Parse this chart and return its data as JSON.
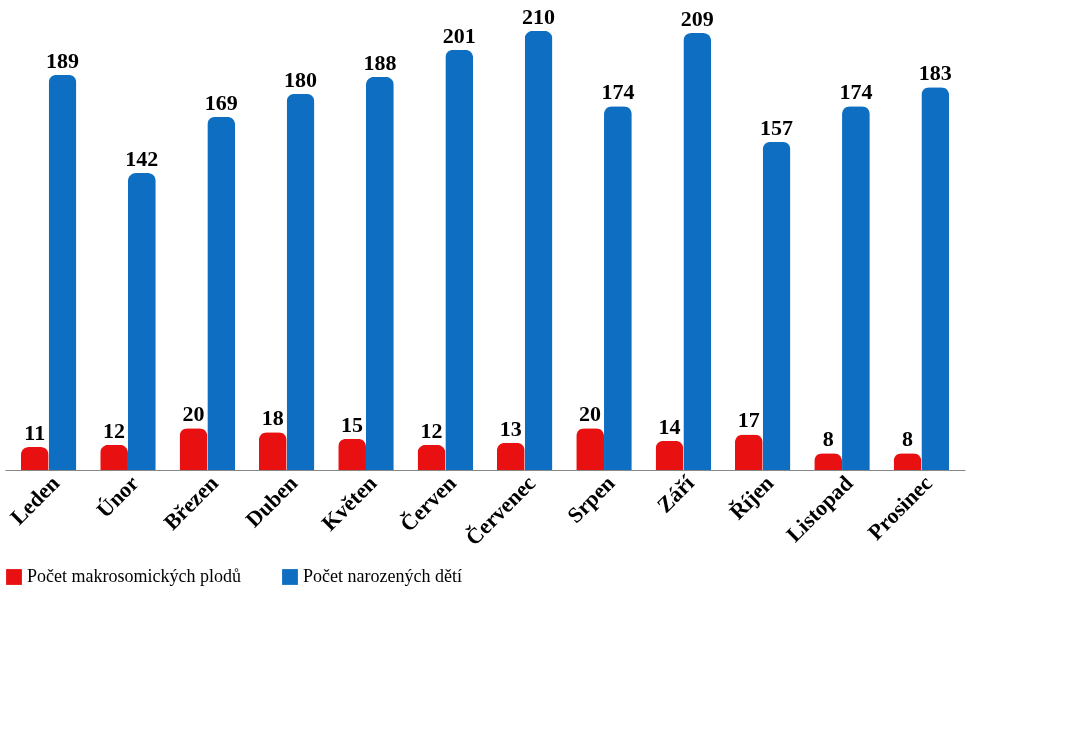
{
  "chart_data": {
    "type": "bar",
    "categories": [
      "Leden",
      "Únor",
      "Březen",
      "Duben",
      "Květen",
      "Červen",
      "Červenec",
      "Srpen",
      "Září",
      "Říjen",
      "Listopad",
      "Prosinec"
    ],
    "series": [
      {
        "name": "Počet makrosomických plodů",
        "color": "#e81010",
        "values": [
          11,
          12,
          20,
          18,
          15,
          12,
          13,
          20,
          14,
          17,
          8,
          8
        ]
      },
      {
        "name": "Počet narozených dětí",
        "color": "#0e6fc2",
        "values": [
          189,
          142,
          169,
          180,
          188,
          201,
          210,
          174,
          209,
          157,
          174,
          183
        ]
      }
    ],
    "data_labels": true,
    "legend": "bottom",
    "grid": false,
    "tick_labels": "x"
  }
}
